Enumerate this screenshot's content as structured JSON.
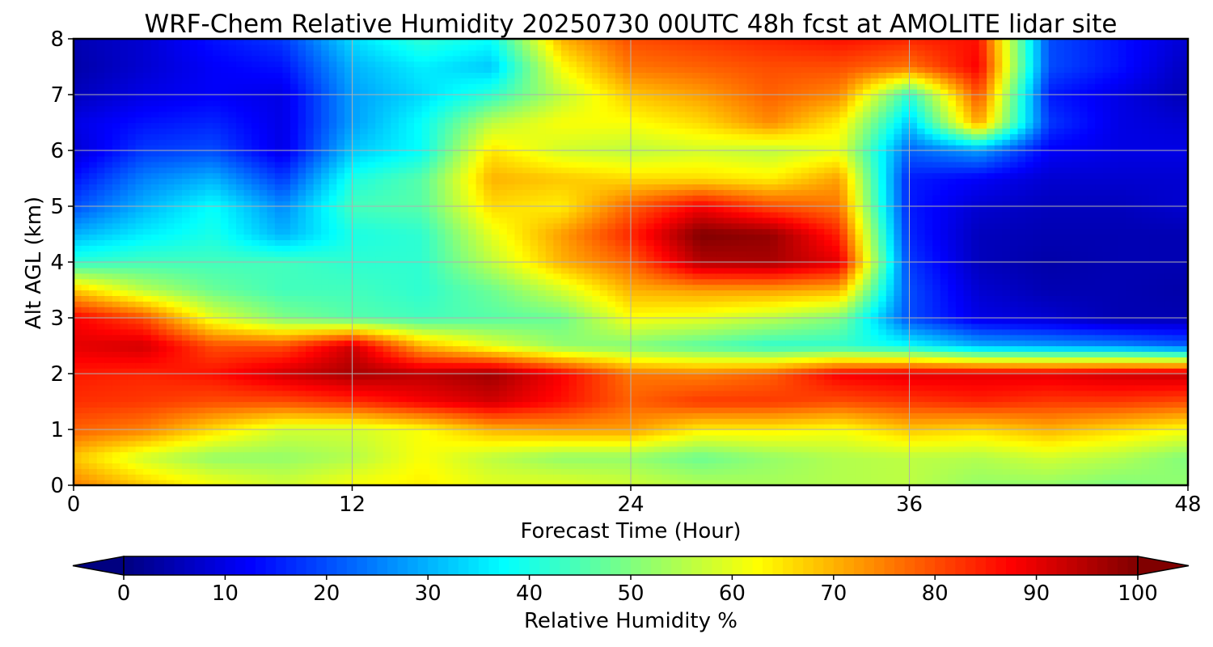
{
  "chart_data": {
    "type": "heatmap",
    "title": "WRF-Chem Relative Humidity 20250730 00UTC 48h fcst at AMOLITE lidar site",
    "xlabel": "Forecast Time (Hour)",
    "ylabel": "Alt AGL (km)",
    "xlim": [
      0,
      48
    ],
    "ylim": [
      0,
      8
    ],
    "x_ticks": [
      "0",
      "12",
      "24",
      "36",
      "48"
    ],
    "y_ticks": [
      "0",
      "1",
      "2",
      "3",
      "4",
      "5",
      "6",
      "7",
      "8"
    ],
    "grid": true,
    "colormap": "jet",
    "colorbar": {
      "label": "Relative Humidity %",
      "orientation": "horizontal",
      "extend": "both",
      "range": [
        0,
        100
      ],
      "ticks": [
        "0",
        "10",
        "20",
        "30",
        "40",
        "50",
        "60",
        "70",
        "80",
        "90",
        "100"
      ]
    },
    "x": [
      0,
      3,
      6,
      9,
      12,
      15,
      18,
      21,
      24,
      27,
      30,
      33,
      36,
      39,
      42,
      45,
      48
    ],
    "y": [
      0,
      0.5,
      1,
      1.5,
      2,
      2.5,
      3,
      3.5,
      4,
      4.5,
      5,
      5.5,
      6,
      6.5,
      7,
      7.5,
      8
    ],
    "z": [
      [
        75,
        68,
        62,
        58,
        62,
        64,
        60,
        60,
        58,
        55,
        54,
        55,
        56,
        52,
        52,
        50,
        52
      ],
      [
        68,
        58,
        52,
        52,
        55,
        62,
        56,
        52,
        52,
        48,
        52,
        55,
        56,
        55,
        58,
        55,
        50
      ],
      [
        78,
        75,
        66,
        58,
        58,
        62,
        70,
        72,
        72,
        64,
        64,
        62,
        68,
        66,
        70,
        66,
        62
      ],
      [
        83,
        82,
        80,
        80,
        83,
        88,
        92,
        86,
        78,
        82,
        82,
        80,
        82,
        84,
        82,
        82,
        80
      ],
      [
        85,
        84,
        86,
        92,
        96,
        94,
        97,
        88,
        76,
        75,
        78,
        88,
        90,
        90,
        90,
        92,
        93
      ],
      [
        90,
        92,
        80,
        80,
        92,
        70,
        60,
        52,
        50,
        46,
        42,
        42,
        38,
        30,
        28,
        26,
        22
      ],
      [
        88,
        80,
        60,
        50,
        46,
        44,
        46,
        48,
        62,
        60,
        56,
        50,
        20,
        10,
        8,
        5,
        5
      ],
      [
        68,
        56,
        48,
        44,
        44,
        42,
        48,
        58,
        70,
        72,
        72,
        70,
        20,
        8,
        5,
        5,
        4
      ],
      [
        42,
        44,
        44,
        44,
        42,
        42,
        56,
        70,
        78,
        95,
        96,
        90,
        18,
        6,
        4,
        5,
        5
      ],
      [
        30,
        36,
        40,
        30,
        40,
        42,
        60,
        72,
        84,
        100,
        98,
        84,
        16,
        6,
        5,
        5,
        5
      ],
      [
        20,
        30,
        38,
        26,
        44,
        46,
        66,
        64,
        78,
        88,
        80,
        76,
        15,
        8,
        6,
        6,
        8
      ],
      [
        14,
        25,
        30,
        18,
        40,
        46,
        70,
        68,
        66,
        66,
        64,
        72,
        15,
        12,
        8,
        8,
        8
      ],
      [
        8,
        18,
        20,
        10,
        32,
        38,
        65,
        58,
        56,
        58,
        56,
        60,
        22,
        28,
        12,
        10,
        10
      ],
      [
        10,
        14,
        16,
        10,
        28,
        38,
        56,
        62,
        62,
        66,
        74,
        64,
        32,
        72,
        18,
        10,
        8
      ],
      [
        6,
        10,
        12,
        10,
        28,
        34,
        42,
        56,
        68,
        72,
        78,
        74,
        42,
        80,
        15,
        10,
        5
      ],
      [
        4,
        8,
        12,
        14,
        30,
        36,
        32,
        62,
        76,
        78,
        80,
        80,
        76,
        88,
        20,
        14,
        6
      ],
      [
        5,
        8,
        14,
        18,
        34,
        42,
        38,
        70,
        80,
        82,
        84,
        86,
        84,
        86,
        20,
        14,
        8
      ]
    ]
  }
}
